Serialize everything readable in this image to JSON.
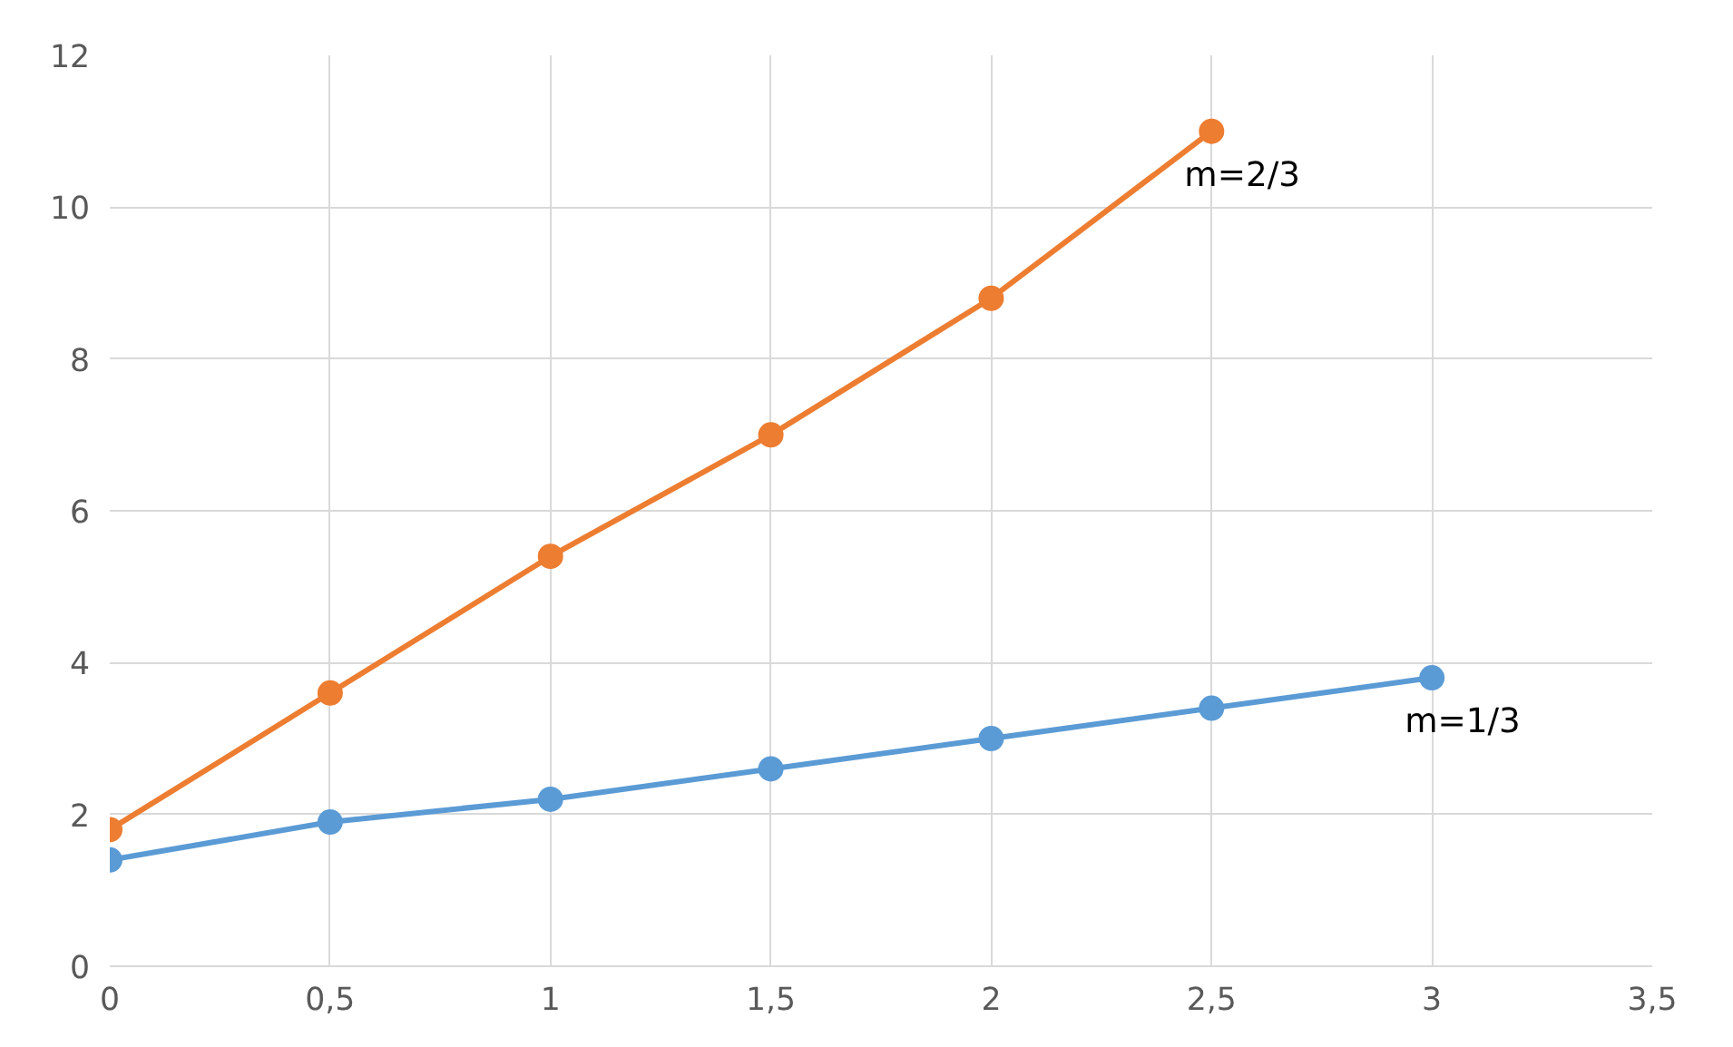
{
  "chart_data": {
    "type": "line",
    "x": [
      0,
      0.5,
      1,
      1.5,
      2,
      2.5,
      3
    ],
    "series": [
      {
        "name": "m=1/3",
        "color": "#5b9bd5",
        "values": [
          1.4,
          1.9,
          2.2,
          2.6,
          3.0,
          3.4,
          3.8
        ]
      },
      {
        "name": "m=2/3",
        "color": "#ed7d31",
        "values": [
          1.8,
          3.6,
          5.4,
          7.0,
          8.8,
          11.0,
          null
        ]
      }
    ],
    "xlim": [
      0,
      3.5
    ],
    "ylim": [
      0,
      12
    ],
    "xticks": [
      0,
      {
        "value": 0.5,
        "label": "0,5"
      },
      1,
      {
        "value": 1.5,
        "label": "1,5"
      },
      2,
      {
        "value": 2.5,
        "label": "2,5"
      },
      3,
      {
        "value": 3.5,
        "label": "3,5"
      }
    ],
    "yticks": [
      0,
      2,
      4,
      6,
      8,
      10,
      12
    ],
    "grid": true,
    "marker": "circle",
    "line_style": "solid"
  }
}
